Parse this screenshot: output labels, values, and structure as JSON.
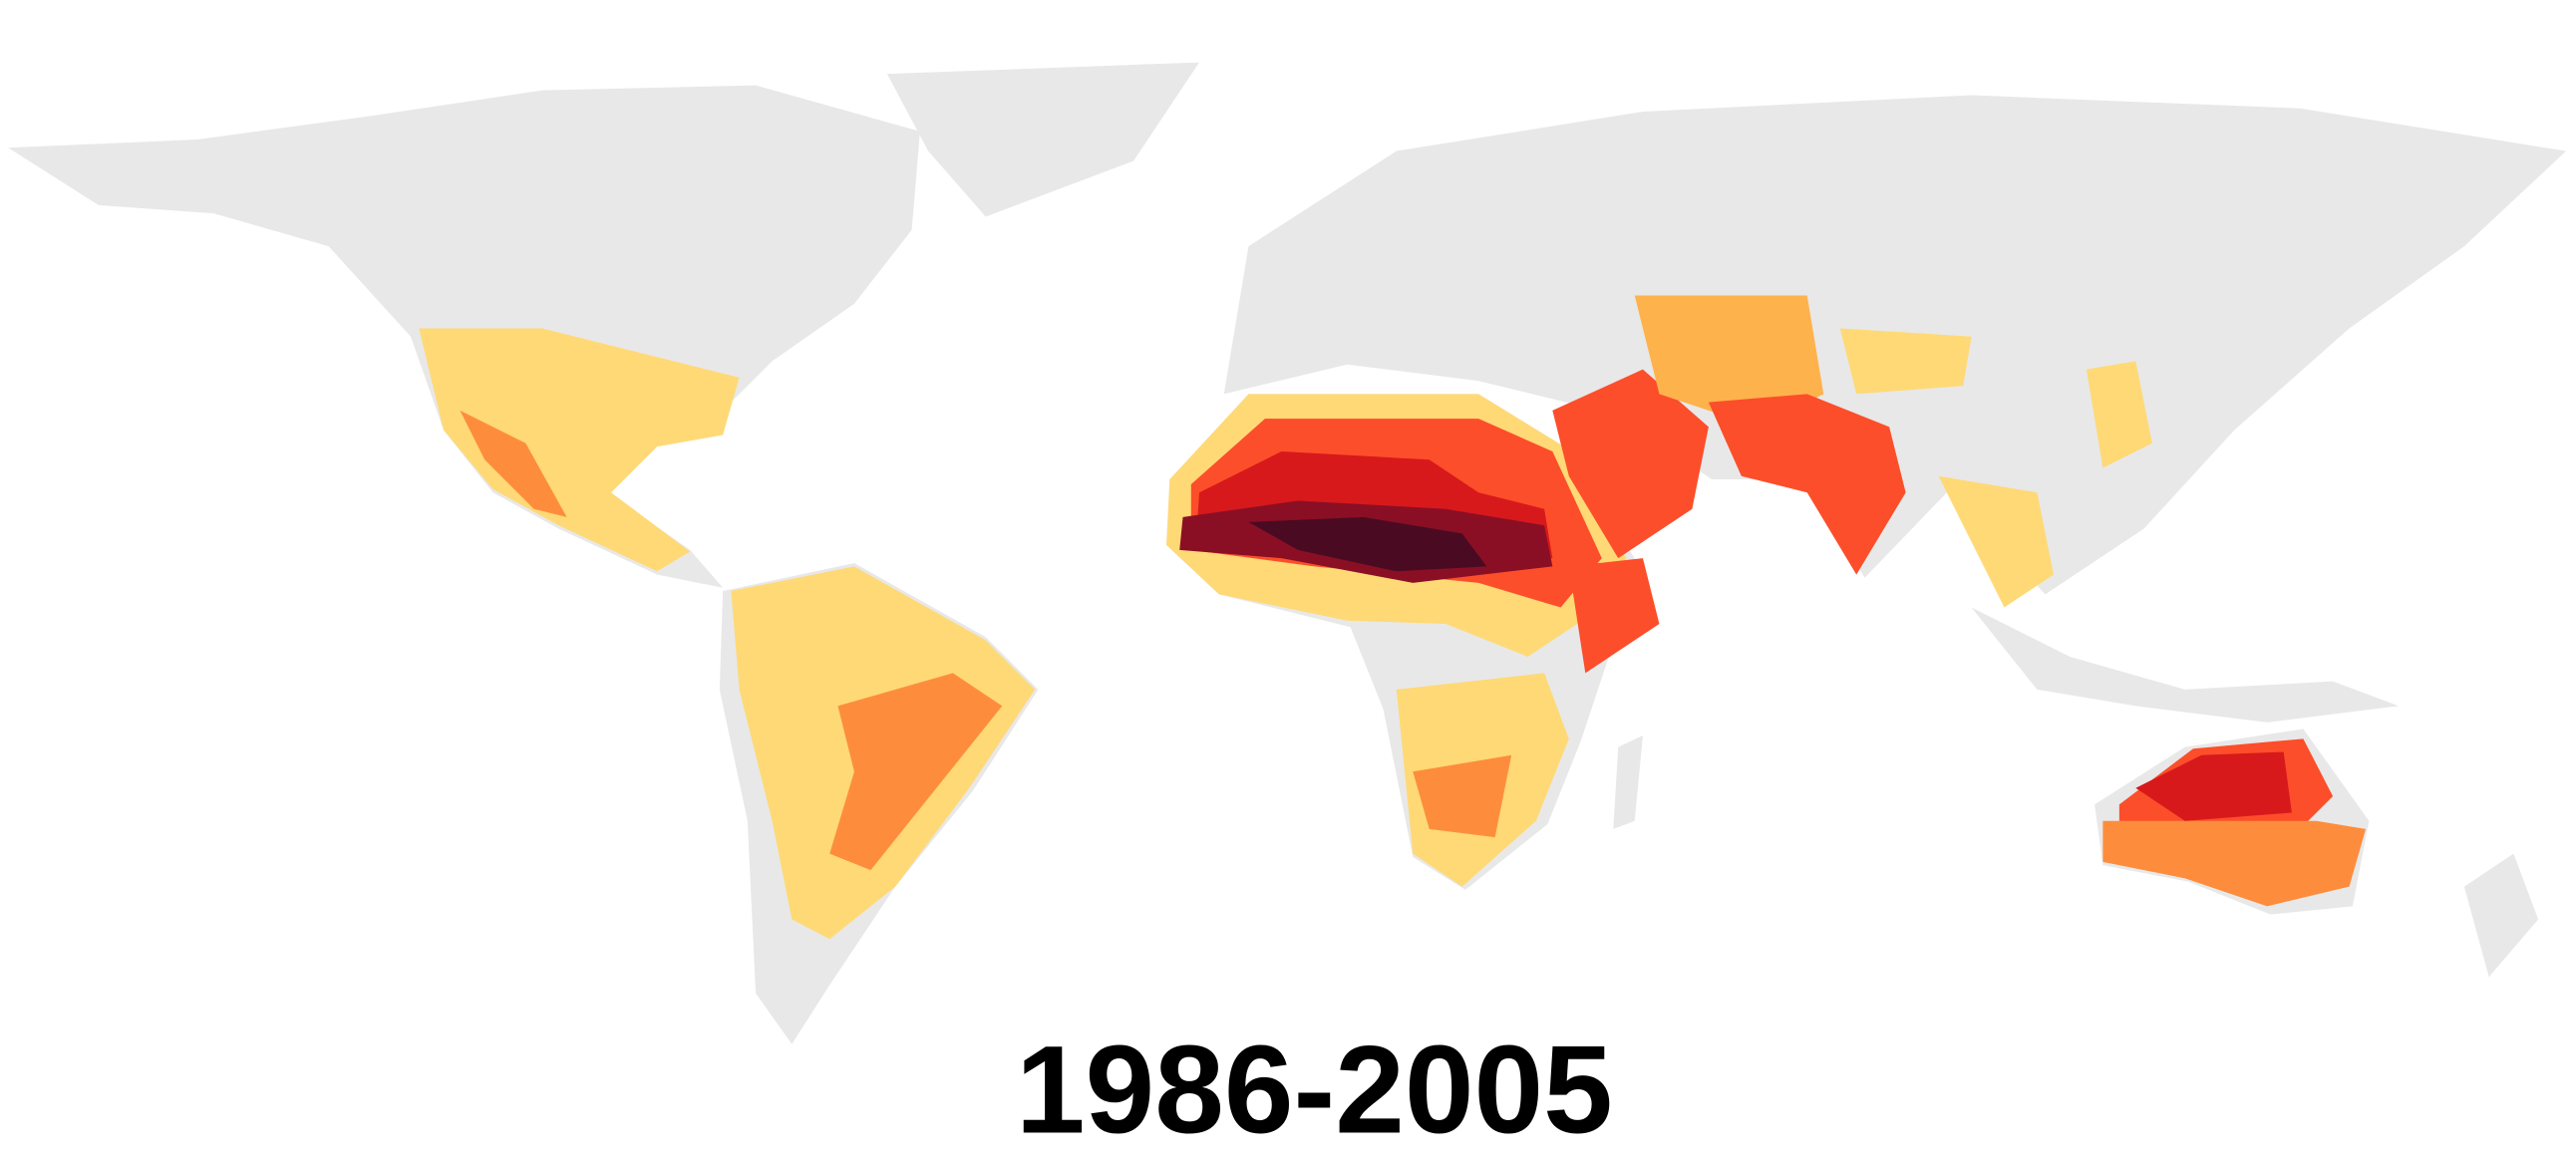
{
  "title": "1986-2005"
}
